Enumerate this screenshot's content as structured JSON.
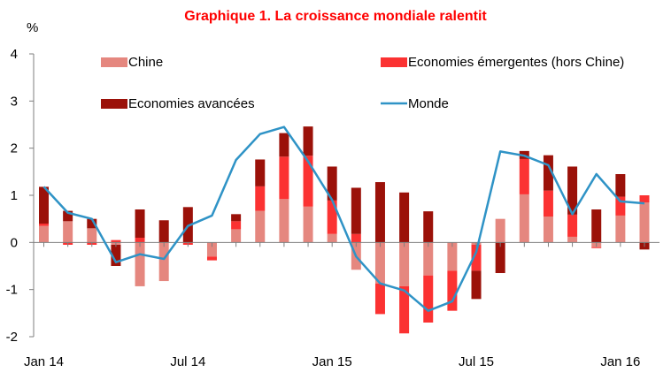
{
  "chart_data": {
    "type": "bar",
    "title": "Graphique 1. La croissance mondiale ralentit",
    "ylabel": "%",
    "xlabel": "",
    "ylim": [
      -2,
      4
    ],
    "yticks": [
      -2,
      -1,
      0,
      1,
      2,
      3,
      4
    ],
    "stacked": true,
    "grid": false,
    "legend_position": "top",
    "x": [
      "2014-01",
      "2014-02",
      "2014-03",
      "2014-04",
      "2014-05",
      "2014-06",
      "2014-07",
      "2014-08",
      "2014-09",
      "2014-10",
      "2014-11",
      "2014-12",
      "2015-01",
      "2015-02",
      "2015-03",
      "2015-04",
      "2015-05",
      "2015-06",
      "2015-07",
      "2015-08",
      "2015-09",
      "2015-10",
      "2015-11",
      "2015-12",
      "2016-01",
      "2016-02"
    ],
    "x_tick_labels": [
      {
        "index": 0,
        "label": "Jan 14"
      },
      {
        "index": 6,
        "label": "Jul 14"
      },
      {
        "index": 12,
        "label": "Jan 15"
      },
      {
        "index": 18,
        "label": "Jul 15"
      },
      {
        "index": 24,
        "label": "Jan 16"
      }
    ],
    "series": [
      {
        "name": "Chine",
        "kind": "bar",
        "color": "#e5877f",
        "values": [
          0.35,
          0.45,
          0.3,
          -0.05,
          -0.93,
          -0.82,
          0.0,
          -0.3,
          0.28,
          0.67,
          0.92,
          0.76,
          0.18,
          -0.58,
          -0.87,
          -0.93,
          -0.7,
          -0.6,
          -0.05,
          0.5,
          1.02,
          0.55,
          0.12,
          -0.1,
          0.57,
          0.85
        ]
      },
      {
        "name": "Economies émergentes (hors Chine)",
        "kind": "bar",
        "color": "#fb3232",
        "values": [
          0.05,
          -0.05,
          -0.05,
          0.05,
          0.1,
          0.0,
          -0.05,
          -0.08,
          0.17,
          0.52,
          0.9,
          1.08,
          0.71,
          0.18,
          -0.65,
          -1.0,
          -1.0,
          -0.85,
          -0.55,
          0.0,
          0.75,
          0.55,
          0.47,
          -0.02,
          0.4,
          0.15
        ]
      },
      {
        "name": "Economies avancées",
        "kind": "bar",
        "color": "#9b1109",
        "values": [
          0.78,
          0.22,
          0.2,
          -0.45,
          0.6,
          0.47,
          0.75,
          0.0,
          0.15,
          0.57,
          0.5,
          0.62,
          0.72,
          0.98,
          1.28,
          1.06,
          0.66,
          0.0,
          -0.6,
          -0.65,
          0.17,
          0.75,
          1.02,
          0.7,
          0.48,
          -0.15
        ]
      },
      {
        "name": "Monde",
        "kind": "line",
        "color": "#2f93c6",
        "values": [
          1.18,
          0.63,
          0.5,
          -0.42,
          -0.25,
          -0.35,
          0.35,
          0.57,
          1.75,
          2.3,
          2.45,
          1.72,
          0.9,
          -0.3,
          -0.87,
          -1.02,
          -1.45,
          -1.25,
          -0.2,
          1.93,
          1.84,
          1.64,
          0.6,
          1.45,
          0.87,
          0.83
        ]
      }
    ]
  }
}
